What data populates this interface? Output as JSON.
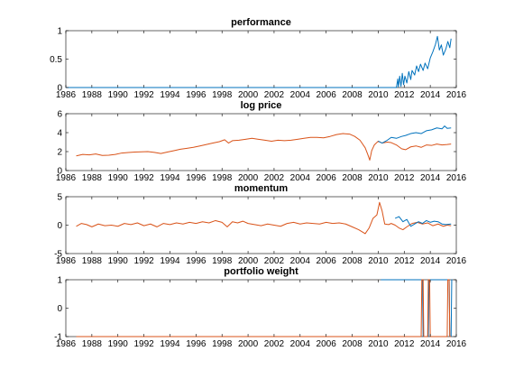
{
  "colors": {
    "blue": "#0072BD",
    "orange": "#D95319"
  },
  "chart_data": [
    {
      "type": "line",
      "title": "performance",
      "xlim": [
        1986,
        2016
      ],
      "ylim": [
        0,
        1
      ],
      "x_ticks": [
        1986,
        1988,
        1990,
        1992,
        1994,
        1996,
        1998,
        2000,
        2002,
        2004,
        2006,
        2008,
        2010,
        2012,
        2014,
        2016
      ],
      "y_ticks": [
        0,
        0.5,
        1
      ],
      "grid": false,
      "series": [
        {
          "color": "#0072BD",
          "points": [
            [
              1986.0,
              0
            ],
            [
              1990.0,
              0
            ],
            [
              1995.0,
              0
            ],
            [
              2000.0,
              0
            ],
            [
              2005.0,
              0
            ],
            [
              2010.0,
              0
            ],
            [
              2011.0,
              0
            ],
            [
              2011.4,
              0
            ],
            [
              2011.5,
              0.15
            ],
            [
              2011.55,
              0.01
            ],
            [
              2011.65,
              0.2
            ],
            [
              2011.75,
              0.02
            ],
            [
              2011.85,
              0.25
            ],
            [
              2011.95,
              0.05
            ],
            [
              2012.05,
              0.2
            ],
            [
              2012.2,
              0.08
            ],
            [
              2012.35,
              0.28
            ],
            [
              2012.5,
              0.14
            ],
            [
              2012.6,
              0.3
            ],
            [
              2012.8,
              0.22
            ],
            [
              2012.95,
              0.38
            ],
            [
              2013.1,
              0.28
            ],
            [
              2013.25,
              0.41
            ],
            [
              2013.45,
              0.3
            ],
            [
              2013.6,
              0.43
            ],
            [
              2013.8,
              0.33
            ],
            [
              2014.0,
              0.52
            ],
            [
              2014.2,
              0.63
            ],
            [
              2014.4,
              0.76
            ],
            [
              2014.55,
              0.9
            ],
            [
              2014.7,
              0.66
            ],
            [
              2014.85,
              0.75
            ],
            [
              2015.0,
              0.57
            ],
            [
              2015.2,
              0.68
            ],
            [
              2015.35,
              0.81
            ],
            [
              2015.5,
              0.7
            ],
            [
              2015.6,
              0.86
            ]
          ]
        }
      ]
    },
    {
      "type": "line",
      "title": "log price",
      "xlim": [
        1986,
        2016
      ],
      "ylim": [
        0,
        6
      ],
      "x_ticks": [
        1986,
        1988,
        1990,
        1992,
        1994,
        1996,
        1998,
        2000,
        2002,
        2004,
        2006,
        2008,
        2010,
        2012,
        2014,
        2016
      ],
      "y_ticks": [
        0,
        2,
        4,
        6
      ],
      "grid": false,
      "series": [
        {
          "color": "#D95319",
          "points": [
            [
              1986.8,
              1.55
            ],
            [
              1987.3,
              1.7
            ],
            [
              1987.8,
              1.65
            ],
            [
              1988.3,
              1.75
            ],
            [
              1988.8,
              1.6
            ],
            [
              1989.3,
              1.62
            ],
            [
              1989.8,
              1.7
            ],
            [
              1990.3,
              1.85
            ],
            [
              1990.8,
              1.9
            ],
            [
              1991.3,
              1.95
            ],
            [
              1991.8,
              1.98
            ],
            [
              1992.3,
              2.0
            ],
            [
              1992.8,
              1.92
            ],
            [
              1993.3,
              1.8
            ],
            [
              1993.8,
              1.95
            ],
            [
              1994.3,
              2.1
            ],
            [
              1994.8,
              2.25
            ],
            [
              1995.3,
              2.35
            ],
            [
              1995.8,
              2.45
            ],
            [
              1996.3,
              2.6
            ],
            [
              1996.8,
              2.75
            ],
            [
              1997.3,
              2.9
            ],
            [
              1997.8,
              3.05
            ],
            [
              1998.2,
              3.25
            ],
            [
              1998.5,
              2.9
            ],
            [
              1998.8,
              3.15
            ],
            [
              1999.3,
              3.2
            ],
            [
              1999.8,
              3.3
            ],
            [
              2000.3,
              3.4
            ],
            [
              2000.8,
              3.3
            ],
            [
              2001.3,
              3.2
            ],
            [
              2001.8,
              3.1
            ],
            [
              2002.3,
              3.2
            ],
            [
              2002.8,
              3.15
            ],
            [
              2003.3,
              3.2
            ],
            [
              2003.8,
              3.3
            ],
            [
              2004.3,
              3.4
            ],
            [
              2004.8,
              3.5
            ],
            [
              2005.3,
              3.5
            ],
            [
              2005.8,
              3.45
            ],
            [
              2006.3,
              3.6
            ],
            [
              2006.8,
              3.8
            ],
            [
              2007.3,
              3.9
            ],
            [
              2007.8,
              3.85
            ],
            [
              2008.2,
              3.6
            ],
            [
              2008.6,
              3.2
            ],
            [
              2009.0,
              2.4
            ],
            [
              2009.2,
              1.7
            ],
            [
              2009.35,
              1.1
            ],
            [
              2009.5,
              2.1
            ],
            [
              2009.7,
              2.7
            ],
            [
              2010.0,
              3.1
            ],
            [
              2010.3,
              2.9
            ],
            [
              2010.7,
              3.0
            ],
            [
              2011.0,
              2.95
            ],
            [
              2011.4,
              2.7
            ],
            [
              2011.8,
              2.3
            ],
            [
              2012.1,
              2.2
            ],
            [
              2012.5,
              2.5
            ],
            [
              2012.9,
              2.6
            ],
            [
              2013.3,
              2.45
            ],
            [
              2013.7,
              2.7
            ],
            [
              2014.1,
              2.65
            ],
            [
              2014.5,
              2.8
            ],
            [
              2014.9,
              2.7
            ],
            [
              2015.3,
              2.75
            ],
            [
              2015.6,
              2.8
            ]
          ]
        },
        {
          "color": "#0072BD",
          "points": [
            [
              2010.0,
              3.1
            ],
            [
              2010.3,
              2.9
            ],
            [
              2010.7,
              3.2
            ],
            [
              2011.0,
              3.5
            ],
            [
              2011.4,
              3.4
            ],
            [
              2011.8,
              3.6
            ],
            [
              2012.1,
              3.7
            ],
            [
              2012.5,
              3.9
            ],
            [
              2012.9,
              4.0
            ],
            [
              2013.3,
              3.9
            ],
            [
              2013.7,
              4.2
            ],
            [
              2014.1,
              4.3
            ],
            [
              2014.5,
              4.5
            ],
            [
              2014.9,
              4.4
            ],
            [
              2015.1,
              4.7
            ],
            [
              2015.3,
              4.45
            ],
            [
              2015.6,
              4.5
            ]
          ]
        }
      ]
    },
    {
      "type": "line",
      "title": "momentum",
      "xlim": [
        1986,
        2016
      ],
      "ylim": [
        -5,
        5
      ],
      "x_ticks": [
        1986,
        1988,
        1990,
        1992,
        1994,
        1996,
        1998,
        2000,
        2002,
        2004,
        2006,
        2008,
        2010,
        2012,
        2014,
        2016
      ],
      "y_ticks": [
        -5,
        0,
        5
      ],
      "grid": false,
      "series": [
        {
          "color": "#D95319",
          "points": [
            [
              1986.8,
              -0.2
            ],
            [
              1987.2,
              0.3
            ],
            [
              1987.6,
              0.1
            ],
            [
              1988.0,
              -0.3
            ],
            [
              1988.5,
              0.2
            ],
            [
              1989.0,
              -0.1
            ],
            [
              1989.5,
              0.0
            ],
            [
              1990.0,
              -0.2
            ],
            [
              1990.5,
              0.3
            ],
            [
              1991.0,
              0.1
            ],
            [
              1991.5,
              0.4
            ],
            [
              1992.0,
              -0.1
            ],
            [
              1992.5,
              0.2
            ],
            [
              1993.0,
              -0.3
            ],
            [
              1993.5,
              0.3
            ],
            [
              1994.0,
              0.1
            ],
            [
              1994.5,
              0.4
            ],
            [
              1995.0,
              0.2
            ],
            [
              1995.5,
              0.5
            ],
            [
              1996.0,
              0.3
            ],
            [
              1996.5,
              0.6
            ],
            [
              1997.0,
              0.4
            ],
            [
              1997.5,
              0.8
            ],
            [
              1998.0,
              0.5
            ],
            [
              1998.4,
              -0.3
            ],
            [
              1998.8,
              0.6
            ],
            [
              1999.2,
              0.4
            ],
            [
              1999.6,
              0.7
            ],
            [
              2000.0,
              0.3
            ],
            [
              2000.5,
              0.1
            ],
            [
              2001.0,
              -0.1
            ],
            [
              2001.5,
              0.2
            ],
            [
              2002.0,
              0.0
            ],
            [
              2002.5,
              -0.2
            ],
            [
              2003.0,
              0.3
            ],
            [
              2003.5,
              0.5
            ],
            [
              2004.0,
              0.2
            ],
            [
              2004.5,
              0.4
            ],
            [
              2005.0,
              0.3
            ],
            [
              2005.5,
              0.2
            ],
            [
              2006.0,
              0.5
            ],
            [
              2006.5,
              0.3
            ],
            [
              2007.0,
              0.4
            ],
            [
              2007.5,
              0.2
            ],
            [
              2008.0,
              -0.3
            ],
            [
              2008.5,
              -0.8
            ],
            [
              2009.0,
              -1.5
            ],
            [
              2009.3,
              -0.5
            ],
            [
              2009.6,
              1.2
            ],
            [
              2009.9,
              1.8
            ],
            [
              2010.1,
              4.0
            ],
            [
              2010.3,
              2.5
            ],
            [
              2010.5,
              0.2
            ],
            [
              2010.8,
              0.1
            ],
            [
              2011.0,
              0.3
            ],
            [
              2011.3,
              0.0
            ],
            [
              2011.6,
              -0.5
            ],
            [
              2011.9,
              -0.8
            ],
            [
              2012.2,
              -0.3
            ],
            [
              2012.6,
              0.3
            ],
            [
              2013.0,
              0.5
            ],
            [
              2013.4,
              0.2
            ],
            [
              2013.8,
              0.4
            ],
            [
              2014.2,
              -0.1
            ],
            [
              2014.6,
              0.2
            ],
            [
              2015.0,
              -0.2
            ],
            [
              2015.3,
              0.0
            ],
            [
              2015.6,
              -0.1
            ]
          ]
        },
        {
          "color": "#0072BD",
          "points": [
            [
              2011.3,
              1.2
            ],
            [
              2011.6,
              1.5
            ],
            [
              2011.9,
              0.6
            ],
            [
              2012.2,
              1.0
            ],
            [
              2012.5,
              -0.2
            ],
            [
              2012.8,
              0.2
            ],
            [
              2013.1,
              0.6
            ],
            [
              2013.4,
              0.3
            ],
            [
              2013.7,
              0.8
            ],
            [
              2014.0,
              0.5
            ],
            [
              2014.3,
              0.7
            ],
            [
              2014.6,
              0.6
            ],
            [
              2014.9,
              0.2
            ],
            [
              2015.2,
              0.1
            ],
            [
              2015.6,
              0.2
            ]
          ]
        }
      ]
    },
    {
      "type": "line",
      "title": "portfolio weight",
      "xlim": [
        1986,
        2016
      ],
      "ylim": [
        -1,
        1
      ],
      "x_ticks": [
        1986,
        1988,
        1990,
        1992,
        1994,
        1996,
        1998,
        2000,
        2002,
        2004,
        2006,
        2008,
        2010,
        2012,
        2014,
        2016
      ],
      "y_ticks": [
        -1,
        0,
        1
      ],
      "grid": false,
      "series": [
        {
          "color": "#0072BD",
          "points": [
            [
              2010.2,
              1
            ],
            [
              2013.4,
              1
            ],
            [
              2013.45,
              -1
            ],
            [
              2013.85,
              -1
            ],
            [
              2013.9,
              1
            ],
            [
              2015.45,
              1
            ],
            [
              2015.5,
              -1
            ],
            [
              2015.6,
              -1
            ],
            [
              2015.65,
              1
            ],
            [
              2015.7,
              1
            ]
          ]
        },
        {
          "color": "#D95319",
          "points": [
            [
              1986.8,
              -1
            ],
            [
              2013.3,
              -1
            ],
            [
              2013.35,
              1
            ],
            [
              2013.45,
              1
            ],
            [
              2013.5,
              -1
            ],
            [
              2013.8,
              -1
            ],
            [
              2013.85,
              1
            ],
            [
              2013.95,
              1
            ],
            [
              2014.0,
              -1
            ],
            [
              2015.3,
              -1
            ],
            [
              2015.35,
              1
            ],
            [
              2015.45,
              1
            ],
            [
              2015.5,
              -1
            ],
            [
              2015.6,
              -1
            ]
          ]
        }
      ]
    }
  ]
}
